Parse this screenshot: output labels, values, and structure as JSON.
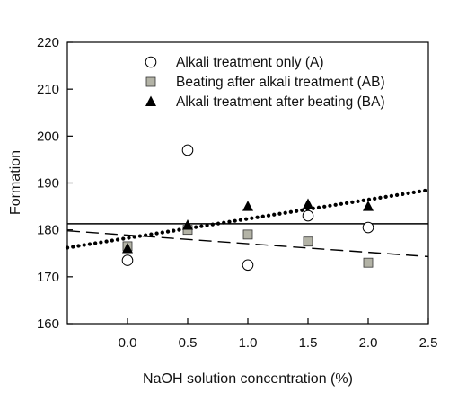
{
  "chart_data": {
    "type": "scatter",
    "xlabel": "NaOH solution concentration (%)",
    "ylabel": "Formation",
    "xlim": [
      -0.5,
      2.5
    ],
    "ylim": [
      160,
      220
    ],
    "x_ticks": [
      0.0,
      0.5,
      1.0,
      1.5,
      2.0,
      2.5
    ],
    "x_tick_labels": [
      "0.0",
      "0.5",
      "1.0",
      "1.5",
      "2.0",
      "2.5"
    ],
    "y_ticks": [
      160,
      170,
      180,
      190,
      200,
      210,
      220
    ],
    "y_tick_labels": [
      "160",
      "170",
      "180",
      "190",
      "200",
      "210",
      "220"
    ],
    "grid": false,
    "legend_position": "top-right",
    "series": [
      {
        "name": "Alkali treatment only (A)",
        "marker": "open-circle",
        "color": "#000000",
        "x": [
          0.0,
          0.5,
          1.0,
          1.5,
          2.0
        ],
        "y": [
          173.5,
          197.0,
          172.5,
          183.0,
          180.5
        ],
        "fit": {
          "style": "solid",
          "x": [
            -0.5,
            2.5
          ],
          "y": [
            181.3,
            181.3
          ]
        }
      },
      {
        "name": "Beating after alkali treatment (AB)",
        "marker": "gray-square",
        "color": "#b3b3a6",
        "x": [
          0.0,
          0.5,
          1.0,
          1.5,
          2.0
        ],
        "y": [
          176.5,
          180.0,
          179.0,
          177.5,
          173.0
        ],
        "fit": {
          "style": "dashed",
          "x": [
            -0.5,
            2.5
          ],
          "y": [
            179.8,
            174.3
          ]
        }
      },
      {
        "name": "Alkali treatment after beating (BA)",
        "marker": "filled-triangle",
        "color": "#000000",
        "x": [
          0.0,
          0.5,
          1.0,
          1.5,
          2.0
        ],
        "y": [
          176.0,
          181.0,
          185.0,
          185.5,
          185.0
        ],
        "fit": {
          "style": "dotted",
          "x": [
            -0.5,
            2.5
          ],
          "y": [
            176.2,
            188.5
          ]
        }
      }
    ]
  }
}
